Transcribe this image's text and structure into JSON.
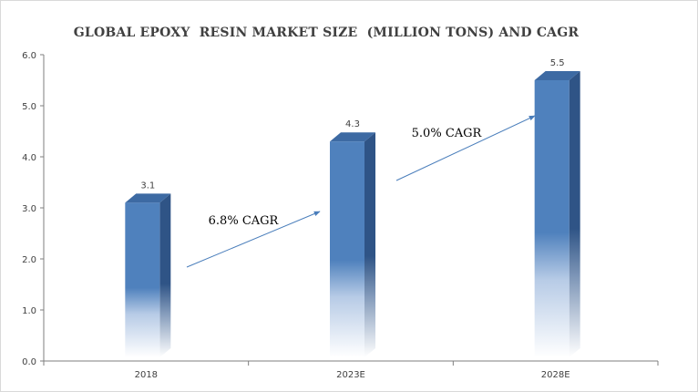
{
  "chart_data": {
    "type": "bar",
    "title": "GLOBAL EPOXY  RESIN MARKET SIZE  (MILLION TONS) AND CAGR",
    "categories": [
      "2018",
      "2023E",
      "2028E"
    ],
    "values": [
      3.1,
      4.3,
      5.5
    ],
    "value_labels": [
      "3.1",
      "4.3",
      "5.5"
    ],
    "ylim": [
      0,
      6
    ],
    "y_ticks": [
      0,
      1,
      2,
      3,
      4,
      5,
      6
    ],
    "y_tick_labels": [
      "0.0",
      "1.0",
      "2.0",
      "3.0",
      "4.0",
      "5.0",
      "6.0"
    ],
    "grid": false,
    "annotations": [
      {
        "text": "6.8% CAGR"
      },
      {
        "text": "5.0% CAGR"
      }
    ],
    "colors": {
      "bar_front": "#4f81bd",
      "bar_side": "#2f5486",
      "bar_top": "#3d6aa3",
      "arrow": "#4a7ebb",
      "axis": "#7f7f7f",
      "text": "#404040"
    }
  }
}
